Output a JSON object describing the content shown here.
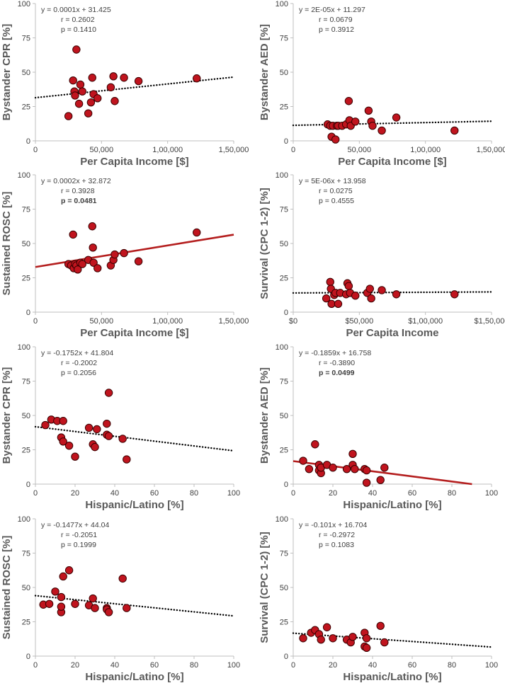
{
  "chart_data": [
    {
      "type": "scatter",
      "xlabel": "Per Capita Income [$]",
      "ylabel": "Bystander CPR [%]",
      "xlim": [
        0,
        150000
      ],
      "ylim": [
        0,
        100
      ],
      "xticks": [
        0,
        50000,
        100000,
        150000
      ],
      "xtick_labels": [
        "0",
        "50,000",
        "1,00,000",
        "1,50,000"
      ],
      "yticks": [
        0,
        25,
        50,
        75,
        100
      ],
      "ytick_labels": [
        "0",
        "25",
        "50",
        "75",
        "100"
      ],
      "equation": "y = 0.0001x + 31.425",
      "r": "r = 0.2602",
      "p": "p = 0.1410",
      "p_bold": false,
      "trend": {
        "style": "dotted",
        "color": "#000000",
        "intercept": 31.425,
        "slope": 0.0001
      },
      "points": [
        {
          "x": 25000,
          "y": 18
        },
        {
          "x": 28500,
          "y": 44
        },
        {
          "x": 29500,
          "y": 36
        },
        {
          "x": 30000,
          "y": 33
        },
        {
          "x": 31000,
          "y": 66.5
        },
        {
          "x": 33000,
          "y": 27
        },
        {
          "x": 34000,
          "y": 41
        },
        {
          "x": 35500,
          "y": 36
        },
        {
          "x": 40000,
          "y": 20
        },
        {
          "x": 42000,
          "y": 28
        },
        {
          "x": 43000,
          "y": 46
        },
        {
          "x": 44000,
          "y": 34
        },
        {
          "x": 47000,
          "y": 31
        },
        {
          "x": 57000,
          "y": 39
        },
        {
          "x": 59000,
          "y": 47
        },
        {
          "x": 60000,
          "y": 29
        },
        {
          "x": 67000,
          "y": 46
        },
        {
          "x": 78000,
          "y": 43.5
        },
        {
          "x": 122000,
          "y": 45.5
        }
      ]
    },
    {
      "type": "scatter",
      "xlabel": "Per Capita Income [$]",
      "ylabel": "Bystander AED [%]",
      "xlim": [
        0,
        150000
      ],
      "ylim": [
        0,
        100
      ],
      "xticks": [
        0,
        50000,
        100000,
        150000
      ],
      "xtick_labels": [
        "0",
        "50,000",
        "1,00,000",
        "1,50,000"
      ],
      "yticks": [
        0,
        25,
        50,
        75,
        100
      ],
      "ytick_labels": [
        "0",
        "25",
        "50",
        "75",
        "100"
      ],
      "equation": "y = 2E-05x + 11.297",
      "r": "r = 0.0679",
      "p": "p = 0.3912",
      "p_bold": false,
      "trend": {
        "style": "dotted",
        "color": "#000000",
        "intercept": 11.297,
        "slope": 2e-05
      },
      "points": [
        {
          "x": 26000,
          "y": 12
        },
        {
          "x": 28000,
          "y": 11
        },
        {
          "x": 29000,
          "y": 3
        },
        {
          "x": 30000,
          "y": 11
        },
        {
          "x": 32000,
          "y": 1
        },
        {
          "x": 33000,
          "y": 11
        },
        {
          "x": 34000,
          "y": 11
        },
        {
          "x": 37000,
          "y": 11
        },
        {
          "x": 40000,
          "y": 12
        },
        {
          "x": 42000,
          "y": 29
        },
        {
          "x": 42500,
          "y": 15
        },
        {
          "x": 43500,
          "y": 11
        },
        {
          "x": 47000,
          "y": 14
        },
        {
          "x": 57000,
          "y": 22
        },
        {
          "x": 59000,
          "y": 14
        },
        {
          "x": 60000,
          "y": 11
        },
        {
          "x": 67000,
          "y": 7.5
        },
        {
          "x": 78000,
          "y": 17
        },
        {
          "x": 122000,
          "y": 7.5
        }
      ]
    },
    {
      "type": "scatter",
      "xlabel": "Per Capita Income [$]",
      "ylabel": "Sustained ROSC [%]",
      "xlim": [
        0,
        150000
      ],
      "ylim": [
        0,
        100
      ],
      "xticks": [
        0,
        50000,
        100000,
        150000
      ],
      "xtick_labels": [
        "0",
        "50,000",
        "1,00,000",
        "1,50,000"
      ],
      "yticks": [
        0,
        25,
        50,
        75,
        100
      ],
      "ytick_labels": [
        "0",
        "25",
        "50",
        "75",
        "100"
      ],
      "equation": "y = 0.0002x + 32.872",
      "r": "r = 0.3928",
      "p": "p = 0.0481",
      "p_bold": true,
      "trend": {
        "style": "solid",
        "color": "#b41e1e",
        "intercept": 32.872,
        "slope": 0.000157
      },
      "points": [
        {
          "x": 25000,
          "y": 35
        },
        {
          "x": 27000,
          "y": 34
        },
        {
          "x": 28500,
          "y": 56.5
        },
        {
          "x": 29000,
          "y": 32
        },
        {
          "x": 30000,
          "y": 35
        },
        {
          "x": 31000,
          "y": 34
        },
        {
          "x": 32000,
          "y": 31
        },
        {
          "x": 34000,
          "y": 36
        },
        {
          "x": 35500,
          "y": 35
        },
        {
          "x": 40000,
          "y": 38
        },
        {
          "x": 43000,
          "y": 62.5
        },
        {
          "x": 43500,
          "y": 47
        },
        {
          "x": 44000,
          "y": 36
        },
        {
          "x": 47000,
          "y": 32
        },
        {
          "x": 57000,
          "y": 34
        },
        {
          "x": 59000,
          "y": 38
        },
        {
          "x": 60000,
          "y": 42
        },
        {
          "x": 67000,
          "y": 43
        },
        {
          "x": 78000,
          "y": 37
        },
        {
          "x": 122000,
          "y": 58
        }
      ]
    },
    {
      "type": "scatter",
      "xlabel": "Per Capita Income",
      "ylabel": "Survival (CPC 1-2) [%]",
      "xlim": [
        0,
        150000
      ],
      "ylim": [
        0,
        100
      ],
      "xticks": [
        0,
        50000,
        100000,
        150000
      ],
      "xtick_labels": [
        "$0",
        "$50,000",
        "$1,00,000",
        "$1,50,000"
      ],
      "yticks": [
        0,
        25,
        50,
        75,
        100
      ],
      "ytick_labels": [
        "0",
        "25",
        "50",
        "75",
        "100"
      ],
      "equation": "y = 5E-06x + 13.958",
      "r": "r = 0.0275",
      "p": "p = 0.4555",
      "p_bold": false,
      "trend": {
        "style": "dotted",
        "color": "#000000",
        "intercept": 13.958,
        "slope": 5e-06
      },
      "points": [
        {
          "x": 25000,
          "y": 10
        },
        {
          "x": 28000,
          "y": 22
        },
        {
          "x": 28500,
          "y": 17
        },
        {
          "x": 29000,
          "y": 6
        },
        {
          "x": 31000,
          "y": 12.5
        },
        {
          "x": 32000,
          "y": 14
        },
        {
          "x": 34000,
          "y": 6
        },
        {
          "x": 35500,
          "y": 14
        },
        {
          "x": 40000,
          "y": 13
        },
        {
          "x": 41000,
          "y": 21
        },
        {
          "x": 42000,
          "y": 19
        },
        {
          "x": 43000,
          "y": 14
        },
        {
          "x": 47000,
          "y": 12
        },
        {
          "x": 56000,
          "y": 14
        },
        {
          "x": 58000,
          "y": 17
        },
        {
          "x": 59000,
          "y": 10
        },
        {
          "x": 67000,
          "y": 16
        },
        {
          "x": 78000,
          "y": 13
        },
        {
          "x": 122000,
          "y": 13
        }
      ]
    },
    {
      "type": "scatter",
      "xlabel": "Hispanic/Latino [%]",
      "ylabel": "Bystander CPR [%]",
      "xlim": [
        0,
        100
      ],
      "ylim": [
        0,
        100
      ],
      "xticks": [
        0,
        20,
        40,
        60,
        80,
        100
      ],
      "xtick_labels": [
        "0",
        "20",
        "40",
        "60",
        "80",
        "100"
      ],
      "yticks": [
        0,
        25,
        50,
        75,
        100
      ],
      "ytick_labels": [
        "0",
        "25",
        "50",
        "75",
        "100"
      ],
      "equation": "y = -0.1752x + 41.804",
      "r": "r = -0.2002",
      "p": "p = 0.2056",
      "p_bold": false,
      "trend": {
        "style": "dotted",
        "color": "#000000",
        "intercept": 41.804,
        "slope": -0.1752
      },
      "points": [
        {
          "x": 5,
          "y": 43
        },
        {
          "x": 8,
          "y": 47
        },
        {
          "x": 11,
          "y": 46
        },
        {
          "x": 13,
          "y": 34
        },
        {
          "x": 14,
          "y": 31
        },
        {
          "x": 14,
          "y": 46
        },
        {
          "x": 17,
          "y": 28
        },
        {
          "x": 20,
          "y": 20
        },
        {
          "x": 27,
          "y": 41
        },
        {
          "x": 29,
          "y": 29
        },
        {
          "x": 30,
          "y": 27
        },
        {
          "x": 31,
          "y": 40
        },
        {
          "x": 36,
          "y": 44
        },
        {
          "x": 36,
          "y": 36
        },
        {
          "x": 37,
          "y": 66.5
        },
        {
          "x": 37,
          "y": 35
        },
        {
          "x": 44,
          "y": 33
        },
        {
          "x": 46,
          "y": 18
        }
      ]
    },
    {
      "type": "scatter",
      "xlabel": "Hispanic/Latino [%]",
      "ylabel": "Bystander AED [%]",
      "xlim": [
        0,
        100
      ],
      "ylim": [
        0,
        100
      ],
      "xticks": [
        0,
        20,
        40,
        60,
        80,
        100
      ],
      "xtick_labels": [
        "0",
        "20",
        "40",
        "60",
        "80",
        "100"
      ],
      "yticks": [
        0,
        25,
        50,
        75,
        100
      ],
      "ytick_labels": [
        "0",
        "25",
        "50",
        "75",
        "100"
      ],
      "equation": "y = -0.1859x + 16.758",
      "r": "r = -0.3890",
      "p": "p = 0.0499",
      "p_bold": true,
      "trend": {
        "style": "solid",
        "color": "#b41e1e",
        "intercept": 16.758,
        "slope": -0.1859
      },
      "points": [
        {
          "x": 5,
          "y": 17
        },
        {
          "x": 8,
          "y": 11
        },
        {
          "x": 11,
          "y": 29
        },
        {
          "x": 13,
          "y": 14
        },
        {
          "x": 13,
          "y": 10
        },
        {
          "x": 14,
          "y": 8
        },
        {
          "x": 14,
          "y": 12
        },
        {
          "x": 17,
          "y": 14
        },
        {
          "x": 20,
          "y": 12
        },
        {
          "x": 27,
          "y": 11
        },
        {
          "x": 30,
          "y": 22
        },
        {
          "x": 30,
          "y": 14
        },
        {
          "x": 31,
          "y": 11
        },
        {
          "x": 36,
          "y": 11
        },
        {
          "x": 37,
          "y": 10
        },
        {
          "x": 37,
          "y": 1
        },
        {
          "x": 44,
          "y": 3
        },
        {
          "x": 46,
          "y": 12
        }
      ]
    },
    {
      "type": "scatter",
      "xlabel": "Hispanic/Latino [%]",
      "ylabel": "Sustained ROSC [%]",
      "xlim": [
        0,
        100
      ],
      "ylim": [
        0,
        100
      ],
      "xticks": [
        0,
        20,
        40,
        60,
        80,
        100
      ],
      "xtick_labels": [
        "0",
        "20",
        "40",
        "60",
        "80",
        "100"
      ],
      "yticks": [
        0,
        25,
        50,
        75,
        100
      ],
      "ytick_labels": [
        "0",
        "25",
        "50",
        "75",
        "100"
      ],
      "equation": "y = -0.1477x + 44.04",
      "r": "r = -0.2051",
      "p": "p = 0.1999",
      "p_bold": false,
      "trend": {
        "style": "dotted",
        "color": "#000000",
        "intercept": 44.04,
        "slope": -0.1477
      },
      "points": [
        {
          "x": 4,
          "y": 37.5
        },
        {
          "x": 7,
          "y": 38
        },
        {
          "x": 10,
          "y": 47
        },
        {
          "x": 13,
          "y": 43
        },
        {
          "x": 13,
          "y": 32
        },
        {
          "x": 13,
          "y": 36
        },
        {
          "x": 14,
          "y": 58
        },
        {
          "x": 17,
          "y": 62.5
        },
        {
          "x": 20,
          "y": 38
        },
        {
          "x": 27,
          "y": 37
        },
        {
          "x": 29,
          "y": 42
        },
        {
          "x": 30,
          "y": 35
        },
        {
          "x": 36,
          "y": 35
        },
        {
          "x": 36,
          "y": 34
        },
        {
          "x": 37,
          "y": 32
        },
        {
          "x": 44,
          "y": 56.5
        },
        {
          "x": 46,
          "y": 35
        }
      ]
    },
    {
      "type": "scatter",
      "xlabel": "Hispanic/Latino [%]",
      "ylabel": "Survival (CPC 1-2) [%]",
      "xlim": [
        0,
        100
      ],
      "ylim": [
        0,
        100
      ],
      "xticks": [
        0,
        20,
        40,
        60,
        80,
        100
      ],
      "xtick_labels": [
        "0",
        "20",
        "40",
        "60",
        "80",
        "100"
      ],
      "yticks": [
        0,
        25,
        50,
        75,
        100
      ],
      "ytick_labels": [
        "0",
        "25",
        "50",
        "75",
        "100"
      ],
      "equation": "y = -0.101x + 16.704",
      "r": "r = -0.2972",
      "p": "p = 0.1083",
      "p_bold": false,
      "trend": {
        "style": "dotted",
        "color": "#000000",
        "intercept": 16.704,
        "slope": -0.101
      },
      "points": [
        {
          "x": 5,
          "y": 13
        },
        {
          "x": 9,
          "y": 17
        },
        {
          "x": 11,
          "y": 19
        },
        {
          "x": 13,
          "y": 16
        },
        {
          "x": 14,
          "y": 12
        },
        {
          "x": 17,
          "y": 21
        },
        {
          "x": 20,
          "y": 13
        },
        {
          "x": 27,
          "y": 12
        },
        {
          "x": 29,
          "y": 10
        },
        {
          "x": 30,
          "y": 14
        },
        {
          "x": 36,
          "y": 17
        },
        {
          "x": 36,
          "y": 7
        },
        {
          "x": 37,
          "y": 6
        },
        {
          "x": 37,
          "y": 13
        },
        {
          "x": 44,
          "y": 22
        },
        {
          "x": 46,
          "y": 10
        }
      ]
    }
  ],
  "colors": {
    "marker_fill": "#c0141e",
    "marker_edge": "#3a0000",
    "axis": "#bfbfbf",
    "tick_text": "#404040",
    "label_text": "#595959"
  }
}
